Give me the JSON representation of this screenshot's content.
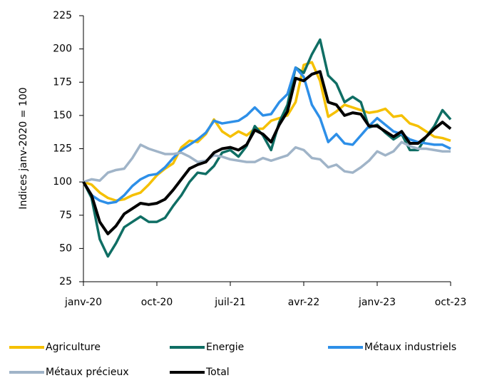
{
  "chart_data": {
    "type": "line",
    "y_label": "Indices janv-2020 = 100",
    "categories": [
      "janv-20",
      null,
      null,
      null,
      null,
      null,
      null,
      null,
      null,
      "oct-20",
      null,
      null,
      null,
      null,
      null,
      null,
      null,
      null,
      "juil-21",
      null,
      null,
      null,
      null,
      null,
      null,
      null,
      null,
      "avr-22",
      null,
      null,
      null,
      null,
      null,
      null,
      null,
      null,
      "janv-23",
      null,
      null,
      null,
      null,
      null,
      null,
      null,
      null,
      "oct-23"
    ],
    "ylim": [
      25,
      225
    ],
    "yticks": [
      25,
      50,
      75,
      100,
      125,
      150,
      175,
      200,
      225
    ],
    "grid": false,
    "legend": "bottom",
    "series": [
      {
        "name": "Agriculture",
        "color": "#f5c000",
        "values": [
          100,
          98,
          92,
          88,
          86,
          87,
          90,
          92,
          98,
          105,
          110,
          114,
          126,
          131,
          130,
          136,
          147,
          138,
          134,
          138,
          135,
          140,
          140,
          146,
          148,
          150,
          160,
          188,
          190,
          176,
          149,
          153,
          158,
          156,
          154,
          152,
          153,
          155,
          149,
          150,
          144,
          142,
          138,
          134,
          133,
          131
        ]
      },
      {
        "name": "Energie",
        "color": "#0f6e64",
        "values": [
          100,
          88,
          57,
          44,
          54,
          66,
          70,
          74,
          70,
          70,
          73,
          82,
          90,
          100,
          107,
          106,
          112,
          122,
          124,
          119,
          127,
          142,
          135,
          124,
          145,
          158,
          186,
          182,
          196,
          207,
          180,
          174,
          160,
          164,
          160,
          141,
          143,
          137,
          132,
          136,
          124,
          124,
          134,
          142,
          154,
          147
        ]
      },
      {
        "name": "Métaux industriels",
        "color": "#2d8fe8",
        "values": [
          100,
          90,
          86,
          84,
          85,
          90,
          97,
          102,
          105,
          106,
          111,
          118,
          124,
          128,
          132,
          137,
          146,
          144,
          145,
          146,
          150,
          156,
          150,
          151,
          160,
          166,
          186,
          179,
          158,
          148,
          130,
          136,
          129,
          128,
          135,
          142,
          148,
          143,
          138,
          136,
          132,
          130,
          129,
          128,
          128,
          125
        ]
      },
      {
        "name": "Métaux précieux",
        "color": "#a0b4c8",
        "values": [
          100,
          102,
          101,
          107,
          109,
          110,
          118,
          128,
          125,
          123,
          121,
          121,
          122,
          119,
          115,
          116,
          120,
          119,
          117,
          116,
          115,
          115,
          118,
          116,
          118,
          120,
          126,
          124,
          118,
          117,
          111,
          113,
          108,
          107,
          111,
          116,
          123,
          120,
          123,
          130,
          127,
          125,
          125,
          124,
          123,
          123
        ]
      },
      {
        "name": "Total",
        "color": "#000000",
        "values": [
          100,
          90,
          70,
          61,
          67,
          76,
          80,
          84,
          83,
          84,
          87,
          94,
          102,
          110,
          113,
          115,
          122,
          125,
          126,
          124,
          128,
          139,
          136,
          130,
          143,
          153,
          178,
          176,
          181,
          183,
          160,
          158,
          150,
          152,
          151,
          142,
          142,
          138,
          134,
          138,
          129,
          129,
          134,
          140,
          145,
          140
        ]
      }
    ]
  }
}
